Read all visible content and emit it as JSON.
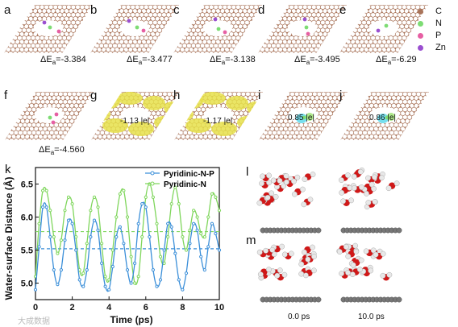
{
  "top_row": [
    {
      "label": "a",
      "energy_prefix": "ΔE",
      "energy_sub": "a",
      "energy_value": "=-3.384",
      "dopant": "N"
    },
    {
      "label": "b",
      "energy_prefix": "ΔE",
      "energy_sub": "a",
      "energy_value": "=-3.477",
      "dopant": "P"
    },
    {
      "label": "c",
      "energy_prefix": "ΔE",
      "energy_sub": "a",
      "energy_value": "=-3.138",
      "dopant": "N"
    },
    {
      "label": "d",
      "energy_prefix": "ΔE",
      "energy_sub": "a",
      "energy_value": "=-3.495",
      "dopant": "N"
    },
    {
      "label": "e",
      "energy_prefix": "ΔE",
      "energy_sub": "a",
      "energy_value": "=-6.29",
      "dopant": "N"
    }
  ],
  "legend_atoms": [
    {
      "symbol": "C",
      "color": "#a9745a"
    },
    {
      "symbol": "N",
      "color": "#7ddc74"
    },
    {
      "symbol": "P",
      "color": "#e65fa3"
    },
    {
      "symbol": "Zn",
      "color": "#9a4fd0"
    }
  ],
  "second_row": [
    {
      "label": "f",
      "energy_prefix": "ΔE",
      "energy_sub": "a",
      "energy_value": "=-4.560"
    },
    {
      "label": "g",
      "charge": "-1.13 |e|"
    },
    {
      "label": "h",
      "charge": "-1.17 |e|"
    },
    {
      "label": "i",
      "charge": "0.85 |e|"
    },
    {
      "label": "j",
      "charge": "0.86 |e|"
    }
  ],
  "panel_k": {
    "label": "k"
  },
  "panel_l": {
    "label": "l"
  },
  "panel_m": {
    "label": "m"
  },
  "snapshot_times": [
    "0.0 ps",
    "10.0 ps"
  ],
  "watermark": "大成数据",
  "colors": {
    "carbon": "#a9745a",
    "nitrogen": "#7ddc74",
    "phosphorus": "#e65fa3",
    "zinc": "#9a4fd0",
    "series1": "#3b8fd9",
    "series2": "#7fd65c",
    "charge_yellow": "#e6e04a"
  },
  "chart_data": {
    "type": "line",
    "title": "",
    "xlabel": "Time (ps)",
    "ylabel": "Water-surface Distance (Å)",
    "xlim": [
      0,
      10
    ],
    "ylim": [
      4.75,
      6.75
    ],
    "xticks": [
      "0",
      "2",
      "4",
      "6",
      "8",
      "10"
    ],
    "yticks": [
      "5.0",
      "5.5",
      "6.0",
      "6.5"
    ],
    "legend_position": "top-right",
    "series": [
      {
        "name": "Pyridinic-N-P",
        "color": "#3b8fd9",
        "mean": 5.52,
        "x": [
          0.0,
          0.2,
          0.4,
          0.6,
          0.8,
          1.0,
          1.2,
          1.4,
          1.6,
          1.8,
          2.0,
          2.2,
          2.4,
          2.6,
          2.8,
          3.0,
          3.2,
          3.4,
          3.6,
          3.8,
          4.0,
          4.2,
          4.4,
          4.6,
          4.8,
          5.0,
          5.2,
          5.4,
          5.6,
          5.8,
          6.0,
          6.2,
          6.4,
          6.6,
          6.8,
          7.0,
          7.2,
          7.4,
          7.6,
          7.8,
          8.0,
          8.2,
          8.4,
          8.6,
          8.8,
          9.0,
          9.2,
          9.4,
          9.6,
          9.8,
          10.0
        ],
        "y": [
          4.9,
          5.55,
          6.15,
          6.15,
          5.7,
          5.2,
          4.98,
          5.2,
          5.65,
          5.95,
          5.9,
          5.5,
          5.05,
          4.95,
          5.2,
          5.7,
          5.95,
          5.8,
          5.3,
          4.95,
          4.9,
          5.25,
          5.7,
          5.85,
          5.6,
          5.2,
          5.0,
          5.3,
          5.9,
          6.2,
          6.15,
          5.7,
          5.2,
          4.95,
          5.05,
          5.5,
          5.9,
          5.85,
          5.45,
          5.05,
          4.9,
          5.15,
          5.6,
          5.9,
          5.8,
          5.4,
          5.2,
          5.55,
          5.9,
          5.75,
          5.5
        ]
      },
      {
        "name": "Pyridinic-N",
        "color": "#7fd65c",
        "mean": 5.78,
        "x": [
          0.0,
          0.2,
          0.4,
          0.6,
          0.8,
          1.0,
          1.2,
          1.4,
          1.6,
          1.8,
          2.0,
          2.2,
          2.4,
          2.6,
          2.8,
          3.0,
          3.2,
          3.4,
          3.6,
          3.8,
          4.0,
          4.2,
          4.4,
          4.6,
          4.8,
          5.0,
          5.2,
          5.4,
          5.6,
          5.8,
          6.0,
          6.2,
          6.4,
          6.6,
          6.8,
          7.0,
          7.2,
          7.4,
          7.6,
          7.8,
          8.0,
          8.2,
          8.4,
          8.6,
          8.8,
          9.0,
          9.2,
          9.4,
          9.6,
          9.8,
          10.0
        ],
        "y": [
          5.1,
          5.9,
          6.4,
          6.4,
          6.1,
          5.7,
          5.45,
          5.65,
          6.1,
          6.3,
          6.2,
          5.7,
          5.2,
          5.15,
          5.6,
          6.1,
          6.3,
          6.15,
          5.6,
          5.1,
          5.05,
          5.5,
          6.0,
          6.35,
          6.4,
          6.0,
          5.4,
          5.0,
          5.1,
          5.7,
          6.3,
          6.5,
          6.3,
          5.9,
          5.4,
          5.3,
          5.7,
          6.2,
          6.45,
          6.2,
          5.7,
          5.5,
          5.8,
          6.1,
          6.0,
          5.75,
          5.7,
          6.0,
          6.35,
          6.3,
          6.1
        ]
      }
    ]
  }
}
